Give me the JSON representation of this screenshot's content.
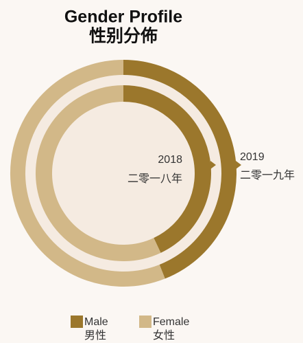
{
  "chart_data": {
    "type": "donut",
    "title": "Gender Profile",
    "subtitle": "性别分佈",
    "categories": [
      "Male",
      "Female"
    ],
    "categories_zh": [
      "男性",
      "女性"
    ],
    "colors": [
      "#9b772c",
      "#d2b888"
    ],
    "series": [
      {
        "name": "2018",
        "name_zh": "二零一八年",
        "values": [
          43,
          57
        ]
      },
      {
        "name": "2019",
        "name_zh": "二零一九年",
        "values": [
          44,
          56
        ]
      }
    ]
  }
}
